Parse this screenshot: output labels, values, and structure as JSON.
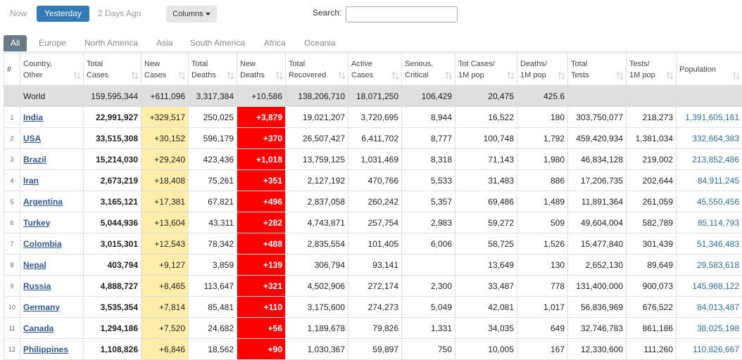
{
  "toolbar": {
    "days": [
      "Now",
      "Yesterday",
      "2 Days Ago"
    ],
    "columns_button": "Columns",
    "search_label": "Search:"
  },
  "regions": [
    "All",
    "Europe",
    "North America",
    "Asia",
    "South America",
    "Africa",
    "Oceania"
  ],
  "table": {
    "headers": [
      "#",
      "Country,\nOther",
      "Total\nCases",
      "New\nCases",
      "Total\nDeaths",
      "New\nDeaths",
      "Total\nRecovered",
      "Active\nCases",
      "Serious,\nCritical",
      "Tot Cases/\n1M pop",
      "Deaths/\n1M pop",
      "Total\nTests",
      "Tests/\n1M pop",
      "Population"
    ],
    "world": [
      null,
      "World",
      "159,595,344",
      "+611,096",
      "3,317,384",
      "+10,586",
      "138,206,710",
      "18,071,250",
      "106,429",
      "20,475",
      "425.6",
      null,
      null,
      null
    ],
    "rows": [
      [
        "1",
        "India",
        "22,991,927",
        "+329,517",
        "250,025",
        "+3,879",
        "19,021,207",
        "3,720,695",
        "8,944",
        "16,522",
        "180",
        "303,750,077",
        "218,273",
        "1,391,605,161"
      ],
      [
        "2",
        "USA",
        "33,515,308",
        "+30,152",
        "596,179",
        "+370",
        "26,507,427",
        "6,411,702",
        "8,777",
        "100,748",
        "1,792",
        "459,420,934",
        "1,381,034",
        "332,664,383"
      ],
      [
        "3",
        "Brazil",
        "15,214,030",
        "+29,240",
        "423,436",
        "+1,018",
        "13,759,125",
        "1,031,469",
        "8,318",
        "71,143",
        "1,980",
        "46,834,128",
        "219,002",
        "213,852,486"
      ],
      [
        "4",
        "Iran",
        "2,673,219",
        "+18,408",
        "75,261",
        "+351",
        "2,127,192",
        "470,766",
        "5,533",
        "31,483",
        "886",
        "17,206,735",
        "202,644",
        "84,911,245"
      ],
      [
        "5",
        "Argentina",
        "3,165,121",
        "+17,381",
        "67,821",
        "+496",
        "2,837,058",
        "260,242",
        "5,357",
        "69,486",
        "1,489",
        "11,891,364",
        "261,059",
        "45,550,456"
      ],
      [
        "6",
        "Turkey",
        "5,044,936",
        "+13,604",
        "43,311",
        "+282",
        "4,743,871",
        "257,754",
        "2,983",
        "59,272",
        "509",
        "49,604,004",
        "582,789",
        "85,114,793"
      ],
      [
        "7",
        "Colombia",
        "3,015,301",
        "+12,543",
        "78,342",
        "+488",
        "2,835,554",
        "101,405",
        "6,006",
        "58,725",
        "1,526",
        "15,477,840",
        "301,439",
        "51,346,483"
      ],
      [
        "8",
        "Nepal",
        "403,794",
        "+9,127",
        "3,859",
        "+139",
        "306,794",
        "93,141",
        null,
        "13,649",
        "130",
        "2,652,130",
        "89,649",
        "29,583,618"
      ],
      [
        "9",
        "Russia",
        "4,888,727",
        "+8,465",
        "113,647",
        "+321",
        "4,502,906",
        "272,174",
        "2,300",
        "33,487",
        "778",
        "131,400,000",
        "900,073",
        "145,988,122"
      ],
      [
        "10",
        "Germany",
        "3,535,354",
        "+7,814",
        "85,481",
        "+110",
        "3,175,600",
        "274,273",
        "5,049",
        "42,081",
        "1,017",
        "56,836,969",
        "676,522",
        "84,013,487"
      ],
      [
        "11",
        "Canada",
        "1,294,186",
        "+7,520",
        "24,682",
        "+56",
        "1,189,678",
        "79,826",
        "1,331",
        "34,035",
        "649",
        "32,746,783",
        "861,186",
        "38,025,198"
      ],
      [
        "12",
        "Philippines",
        "1,108,826",
        "+6,846",
        "18,562",
        "+90",
        "1,030,367",
        "59,897",
        "750",
        "10,005",
        "167",
        "12,330,600",
        "111,260",
        "110,826,667"
      ]
    ]
  }
}
